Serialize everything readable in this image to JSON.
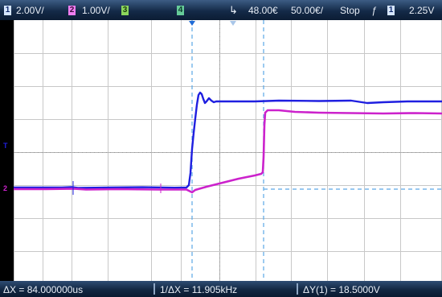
{
  "top_bar": {
    "ch1_number": "1",
    "ch1_scale": "2.00V/",
    "ch2_number": "2",
    "ch2_scale": "1.00V/",
    "ch3_number": "3",
    "ch4_number": "4",
    "time_offset": "48.00€",
    "time_scale": "50.00€/",
    "run_state": "Stop",
    "trigger_source": "1",
    "trigger_level": "2.25V"
  },
  "markers": {
    "trigger_marker": "T",
    "channel_marker": "2"
  },
  "bottom_bar": {
    "delta_x": "ΔX = 84.000000us",
    "inverse_delta_x": "1/ΔX = 11.905kHz",
    "delta_y": "ΔY(1) = 18.5000V"
  },
  "colors": {
    "ch1": "#1f1fe0",
    "ch2": "#cc22cc",
    "ch3": "#8bd65c",
    "ch4": "#66cc99",
    "grid": "#c8c8c8",
    "cursor": "#5aa8e6"
  }
}
